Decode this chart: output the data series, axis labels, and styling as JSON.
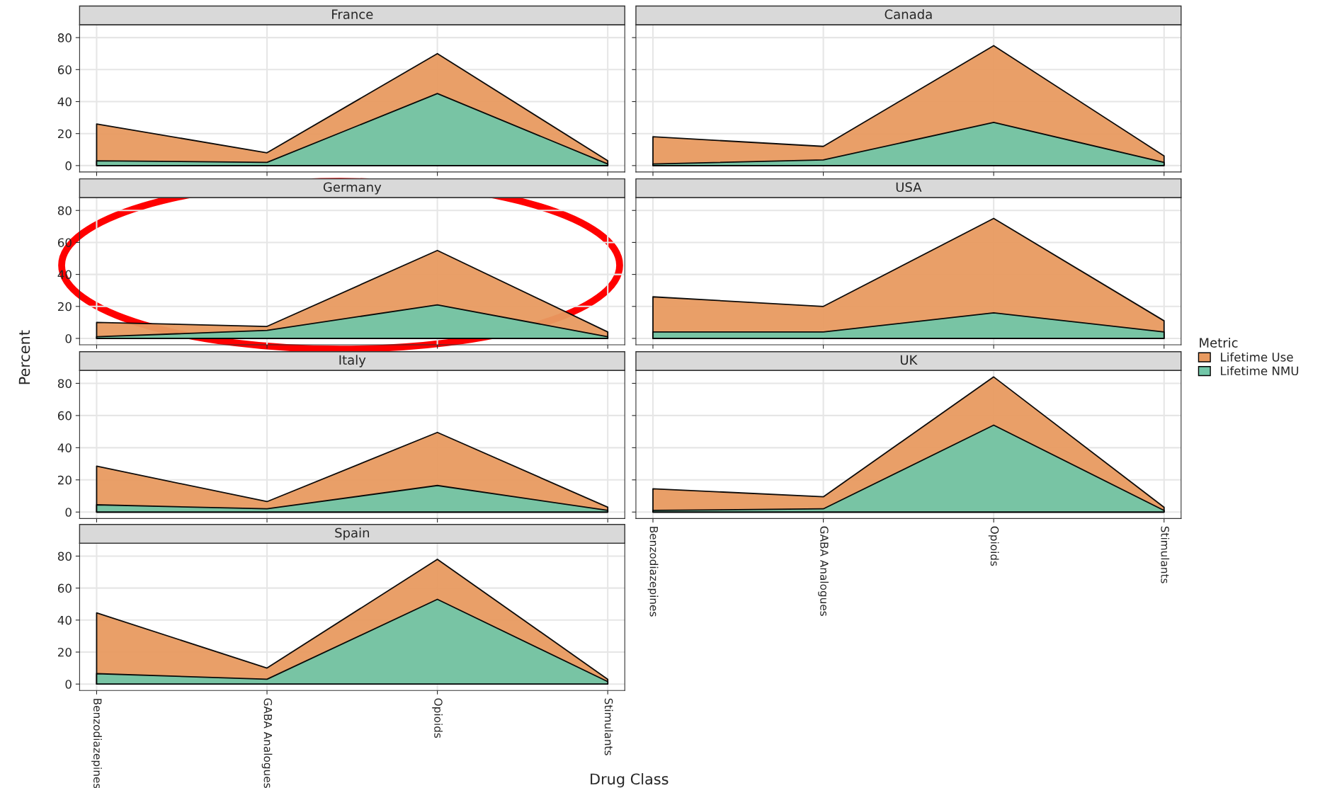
{
  "chart_data": [
    {
      "type": "area",
      "title": "France",
      "categories": [
        "Benzodiazepines",
        "GABA Analogues",
        "Opioids",
        "Stimulants"
      ],
      "ylim": [
        -4,
        88
      ],
      "yticks": [
        0,
        20,
        40,
        60,
        80
      ],
      "grid": true,
      "tick_labels": "y",
      "legend": "right",
      "legend_title": "Metric",
      "series": [
        {
          "name": "Lifetime Use",
          "color": "#e89a60",
          "values": [
            26,
            8,
            70,
            3
          ]
        },
        {
          "name": "Lifetime NMU",
          "color": "#72c6a8",
          "values": [
            3,
            2,
            45,
            1
          ]
        }
      ]
    },
    {
      "type": "area",
      "title": "Canada",
      "categories": [
        "Benzodiazepines",
        "GABA Analogues",
        "Opioids",
        "Stimulants"
      ],
      "ylim": [
        -4,
        88
      ],
      "yticks": [
        0,
        20,
        40,
        60,
        80
      ],
      "grid": true,
      "tick_labels": false,
      "series": [
        {
          "name": "Lifetime Use",
          "color": "#e89a60",
          "values": [
            18,
            12,
            75,
            6
          ]
        },
        {
          "name": "Lifetime NMU",
          "color": "#72c6a8",
          "values": [
            1,
            3.5,
            27,
            2
          ]
        }
      ]
    },
    {
      "type": "area",
      "title": "Germany",
      "categories": [
        "Benzodiazepines",
        "GABA Analogues",
        "Opioids",
        "Stimulants"
      ],
      "ylim": [
        -4,
        88
      ],
      "yticks": [
        0,
        20,
        40,
        60,
        80
      ],
      "grid": true,
      "tick_labels": "y",
      "series": [
        {
          "name": "Lifetime Use",
          "color": "#e89a60",
          "values": [
            10,
            7.5,
            55,
            4
          ]
        },
        {
          "name": "Lifetime NMU",
          "color": "#72c6a8",
          "values": [
            1,
            5,
            21,
            1
          ]
        }
      ]
    },
    {
      "type": "area",
      "title": "USA",
      "categories": [
        "Benzodiazepines",
        "GABA Analogues",
        "Opioids",
        "Stimulants"
      ],
      "ylim": [
        -4,
        88
      ],
      "yticks": [
        0,
        20,
        40,
        60,
        80
      ],
      "grid": true,
      "tick_labels": false,
      "series": [
        {
          "name": "Lifetime Use",
          "color": "#e89a60",
          "values": [
            26,
            20,
            75,
            11
          ]
        },
        {
          "name": "Lifetime NMU",
          "color": "#72c6a8",
          "values": [
            4,
            4,
            16,
            4
          ]
        }
      ]
    },
    {
      "type": "area",
      "title": "Italy",
      "categories": [
        "Benzodiazepines",
        "GABA Analogues",
        "Opioids",
        "Stimulants"
      ],
      "ylim": [
        -4,
        88
      ],
      "yticks": [
        0,
        20,
        40,
        60,
        80
      ],
      "grid": true,
      "tick_labels": "y",
      "ylabel": "Percent",
      "series": [
        {
          "name": "Lifetime Use",
          "color": "#e89a60",
          "values": [
            28.5,
            6.5,
            49.5,
            3
          ]
        },
        {
          "name": "Lifetime NMU",
          "color": "#72c6a8",
          "values": [
            4.5,
            2,
            16.5,
            1
          ]
        }
      ]
    },
    {
      "type": "area",
      "title": "UK",
      "categories": [
        "Benzodiazepines",
        "GABA Analogues",
        "Opioids",
        "Stimulants"
      ],
      "ylim": [
        -4,
        88
      ],
      "yticks": [
        0,
        20,
        40,
        60,
        80
      ],
      "grid": true,
      "tick_labels": "x",
      "series": [
        {
          "name": "Lifetime Use",
          "color": "#e89a60",
          "values": [
            14.5,
            9.5,
            84,
            3
          ]
        },
        {
          "name": "Lifetime NMU",
          "color": "#72c6a8",
          "values": [
            1,
            2,
            54,
            1
          ]
        }
      ]
    },
    {
      "type": "area",
      "title": "Spain",
      "categories": [
        "Benzodiazepines",
        "GABA Analogues",
        "Opioids",
        "Stimulants"
      ],
      "ylim": [
        -4,
        88
      ],
      "yticks": [
        0,
        20,
        40,
        60,
        80
      ],
      "grid": true,
      "xlabel": "Drug Class",
      "series": [
        {
          "name": "Lifetime Use",
          "color": "#e89a60",
          "values": [
            44.5,
            10,
            78,
            3
          ]
        },
        {
          "name": "Lifetime NMU",
          "color": "#72c6a8",
          "values": [
            6.5,
            3,
            53,
            1.5
          ]
        }
      ]
    }
  ]
}
